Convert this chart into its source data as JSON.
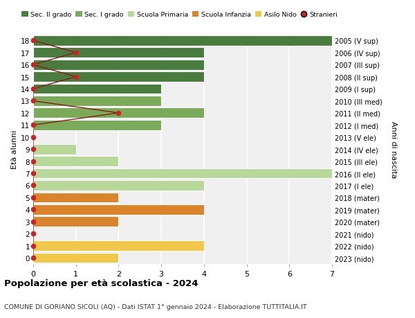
{
  "ages": [
    18,
    17,
    16,
    15,
    14,
    13,
    12,
    11,
    10,
    9,
    8,
    7,
    6,
    5,
    4,
    3,
    2,
    1,
    0
  ],
  "years": [
    "2005 (V sup)",
    "2006 (IV sup)",
    "2007 (III sup)",
    "2008 (II sup)",
    "2009 (I sup)",
    "2010 (III med)",
    "2011 (II med)",
    "2012 (I med)",
    "2013 (V ele)",
    "2014 (IV ele)",
    "2015 (III ele)",
    "2016 (II ele)",
    "2017 (I ele)",
    "2018 (mater)",
    "2019 (mater)",
    "2020 (mater)",
    "2021 (nido)",
    "2022 (nido)",
    "2023 (nido)"
  ],
  "bar_values": [
    7,
    4,
    4,
    4,
    3,
    3,
    4,
    3,
    0,
    1,
    2,
    7,
    4,
    2,
    4,
    2,
    0,
    4,
    2
  ],
  "bar_colors": [
    "#4a7c3f",
    "#4a7c3f",
    "#4a7c3f",
    "#4a7c3f",
    "#4a7c3f",
    "#7aaa5a",
    "#7aaa5a",
    "#7aaa5a",
    "#b8d89a",
    "#b8d89a",
    "#b8d89a",
    "#b8d89a",
    "#b8d89a",
    "#d9832a",
    "#d9832a",
    "#d9832a",
    "#f0c84a",
    "#f0c84a",
    "#f0c84a"
  ],
  "stranieri_values": [
    0,
    1,
    0,
    1,
    0,
    0,
    2,
    0,
    0,
    0,
    0,
    0,
    0,
    0,
    0,
    0,
    0,
    0,
    0
  ],
  "stranieri_ages": [
    18,
    17,
    16,
    15,
    14,
    13,
    12,
    11,
    10,
    9,
    8,
    7,
    6,
    5,
    4,
    3,
    2,
    1,
    0
  ],
  "legend_labels": [
    "Sec. II grado",
    "Sec. I grado",
    "Scuola Primaria",
    "Scuola Infanzia",
    "Asilo Nido",
    "Stranieri"
  ],
  "legend_colors": [
    "#4a7c3f",
    "#7aaa5a",
    "#b8d89a",
    "#d9832a",
    "#f0c84a",
    "#cc2222"
  ],
  "title": "Popolazione per età scolastica - 2024",
  "subtitle": "COMUNE DI GORIANO SICOLI (AQ) - Dati ISTAT 1° gennaio 2024 - Elaborazione TUTTITALIA.IT",
  "xlabel_right": "Anni di nascita",
  "ylabel": "Età alunni",
  "xlim": [
    0,
    7
  ],
  "bar_height": 0.85,
  "bg_color": "#ffffff",
  "plot_bg_color": "#f0f0f0",
  "grid_color": "#ffffff",
  "stranieri_line_color": "#8b1a1a",
  "stranieri_dot_color": "#cc2222"
}
